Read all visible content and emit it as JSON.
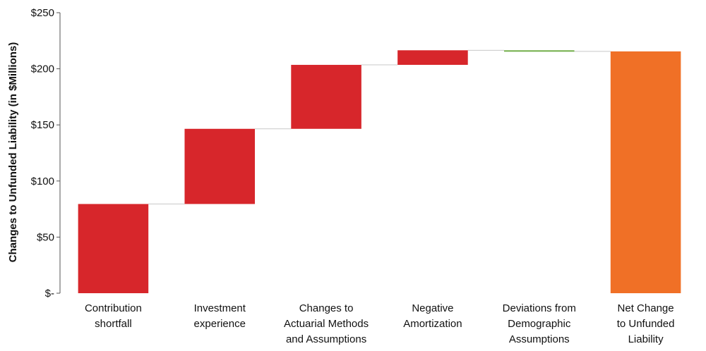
{
  "chart_data": {
    "type": "bar",
    "subtype": "waterfall",
    "ylabel": "Changes to Unfunded Liability (in $Millions)",
    "ylim": [
      0,
      250
    ],
    "yticks": [
      {
        "value": 0,
        "label": "$-"
      },
      {
        "value": 50,
        "label": "$50"
      },
      {
        "value": 100,
        "label": "$100"
      },
      {
        "value": 150,
        "label": "$150"
      },
      {
        "value": 200,
        "label": "$200"
      },
      {
        "value": 250,
        "label": "$250"
      }
    ],
    "grid": false,
    "legend": "none",
    "categories": [
      [
        "Contribution",
        "shortfall"
      ],
      [
        "Investment",
        "experience"
      ],
      [
        "Changes to",
        "Actuarial Methods",
        "and Assumptions"
      ],
      [
        "Negative",
        "Amortization"
      ],
      [
        "Deviations from",
        "Demographic",
        "Assumptions"
      ],
      [
        "Net Change",
        "to Unfunded",
        "Liability"
      ]
    ],
    "bars": [
      {
        "start": 0,
        "end": 79.5,
        "color": "#d7262b"
      },
      {
        "start": 79.5,
        "end": 146.5,
        "color": "#d7262b"
      },
      {
        "start": 146.5,
        "end": 203.5,
        "color": "#d7262b"
      },
      {
        "start": 203.5,
        "end": 216.5,
        "color": "#d7262b"
      },
      {
        "start": 216.5,
        "end": 215.5,
        "color": "#70ad47"
      },
      {
        "start": 0,
        "end": 215.5,
        "color": "#f07026"
      }
    ]
  }
}
